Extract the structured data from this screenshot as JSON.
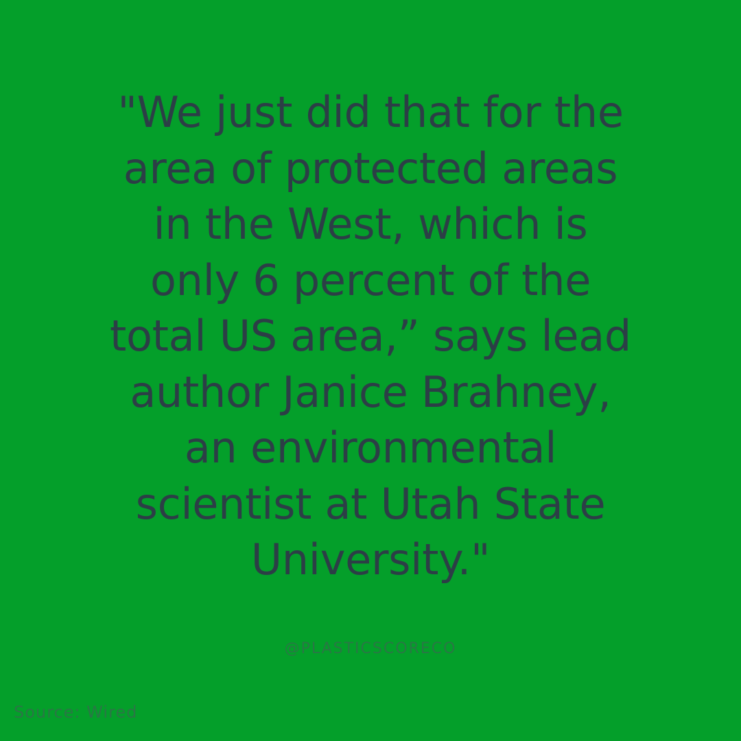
{
  "quote": {
    "lines": [
      "\"We just did that for the",
      "area of protected areas",
      "in the West, which is",
      "only 6 percent of the",
      "total US area,” says lead",
      "author Janice Brahney,",
      "an environmental",
      "scientist at Utah State",
      "University.\""
    ]
  },
  "handle": "@PLASTICSCORECO",
  "source": "Source: Wired",
  "colors": {
    "background": "#049f2a",
    "quote_text": "#2c3e46",
    "secondary_text": "#2a7745"
  }
}
